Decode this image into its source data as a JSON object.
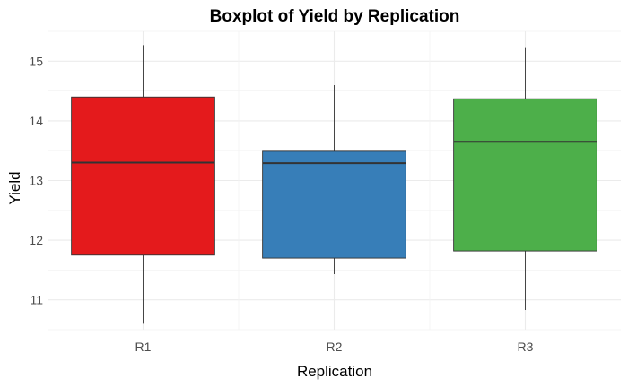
{
  "chart_data": {
    "type": "boxplot",
    "title": "Boxplot of Yield by Replication",
    "xlabel": "Replication",
    "ylabel": "Yield",
    "ylim": [
      10.5,
      15.5
    ],
    "yticks": [
      "11",
      "12",
      "13",
      "14",
      "15"
    ],
    "grid": true,
    "legend": "none",
    "categories": [
      "R1",
      "R2",
      "R3"
    ],
    "boxes": [
      {
        "category": "R1",
        "min": 10.6,
        "q1": 11.75,
        "median": 13.3,
        "q3": 14.4,
        "max": 15.27,
        "color": "#E41A1C"
      },
      {
        "category": "R2",
        "min": 11.43,
        "q1": 11.7,
        "median": 13.29,
        "q3": 13.49,
        "max": 14.6,
        "color": "#377EB8"
      },
      {
        "category": "R3",
        "min": 10.83,
        "q1": 11.82,
        "median": 13.65,
        "q3": 14.37,
        "max": 15.22,
        "color": "#4DAF4A"
      }
    ]
  }
}
